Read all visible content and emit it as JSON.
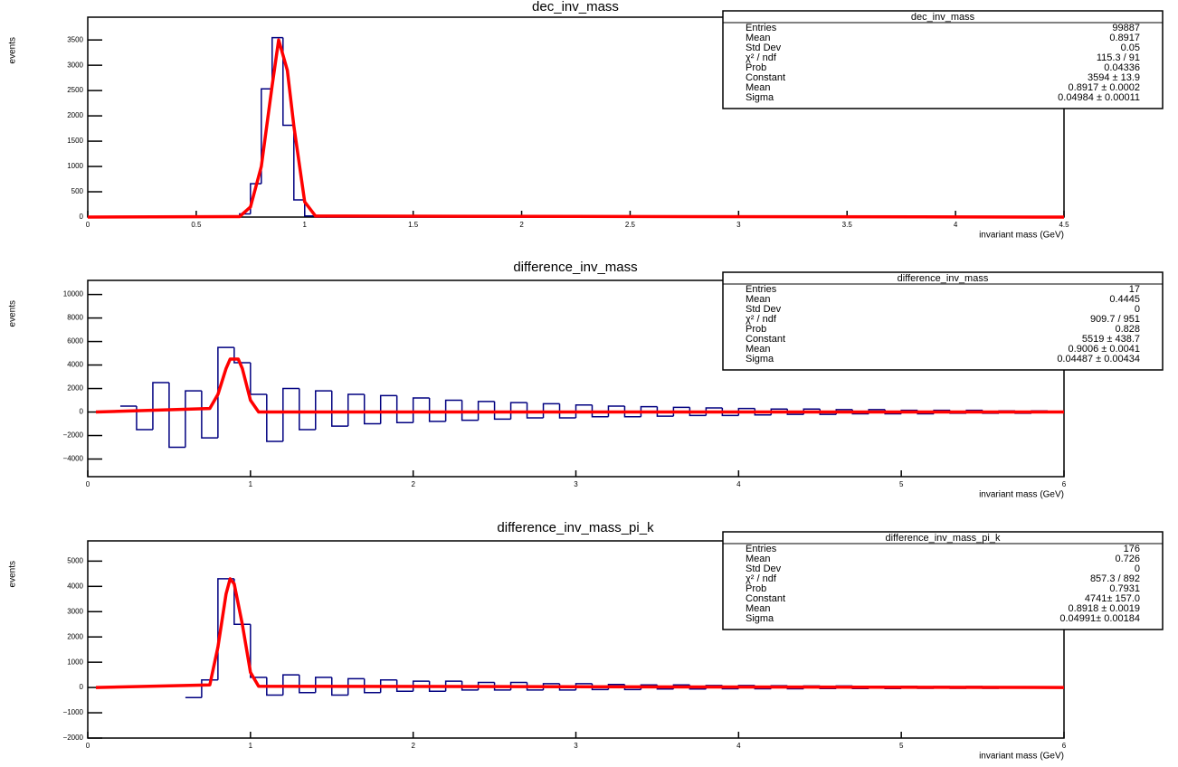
{
  "chart_data": [
    {
      "type": "histogram",
      "title": "dec_inv_mass",
      "x_label": "invariant mass (GeV)",
      "y_label": "events",
      "xlim": [
        0,
        4.5
      ],
      "xticks": [
        0,
        0.5,
        1,
        1.5,
        2,
        2.5,
        3,
        3.5,
        4,
        4.5
      ],
      "ylim": [
        0,
        3950
      ],
      "yticks": [
        0,
        500,
        1000,
        1500,
        2000,
        2500,
        3000,
        3500
      ],
      "color": "#000080",
      "bins": [
        0,
        0.5,
        0.55,
        0.6,
        0.65,
        0.7,
        0.75,
        0.8,
        0.85,
        0.9,
        0.95,
        1,
        1.05,
        1.1,
        1.15,
        1.2,
        4.5
      ],
      "values": [
        0,
        0,
        0,
        0,
        2,
        63,
        660,
        2533,
        3545,
        1814,
        339,
        23,
        1,
        0,
        0,
        0
      ],
      "fit": {
        "color": "#ff0000",
        "x": [
          0,
          0.7,
          0.75,
          0.8,
          0.85,
          0.88,
          0.92,
          0.95,
          1.0,
          1.05,
          4.5
        ],
        "values": [
          0,
          10,
          200,
          1000,
          2600,
          3500,
          2900,
          1800,
          300,
          20,
          0
        ]
      },
      "stats": {
        "title": "dec_inv_mass",
        "rows": [
          {
            "label": "Entries",
            "value": "99887"
          },
          {
            "label": "Mean",
            "value": "0.8917"
          },
          {
            "label": "Std Dev",
            "value": "0.05"
          },
          {
            "label": "χ² / ndf",
            "value": "115.3 / 91"
          },
          {
            "label": "Prob",
            "value": "0.04336"
          },
          {
            "label": "Constant",
            "value": "3594 ± 13.9"
          },
          {
            "label": "Mean",
            "value": "0.8917 ± 0.0002"
          },
          {
            "label": "Sigma",
            "value": "0.04984 ± 0.00011"
          }
        ]
      }
    },
    {
      "type": "histogram",
      "title": "difference_inv_mass",
      "x_label": "invariant mass (GeV)",
      "y_label": "events",
      "xlim": [
        0,
        6
      ],
      "xticks": [
        0,
        1,
        2,
        3,
        4,
        5,
        6
      ],
      "ylim": [
        -5500,
        11200
      ],
      "yticks": [
        {
          "value": -4000,
          "label": "−4000"
        },
        {
          "value": -2000,
          "label": "−2000"
        },
        0,
        2000,
        4000,
        6000,
        8000,
        10000
      ],
      "color": "#000080",
      "bins": [
        0.2,
        0.3,
        0.4,
        0.5,
        0.6,
        0.7,
        0.8,
        0.9,
        1,
        1.1,
        1.2,
        1.3,
        1.4,
        1.5,
        1.6,
        1.7,
        1.8,
        1.9,
        2,
        2.1,
        2.2,
        2.3,
        2.4,
        2.5,
        2.6,
        2.7,
        2.8,
        2.9,
        3,
        3.1,
        3.2,
        3.3,
        3.4,
        3.5,
        3.6,
        3.7,
        3.8,
        3.9,
        4,
        4.1,
        4.2,
        4.3,
        4.4,
        4.5,
        4.6,
        4.7,
        4.8,
        4.9,
        5,
        5.1,
        5.2,
        5.3,
        5.4,
        5.5,
        5.6,
        5.7,
        5.8,
        5.9,
        6
      ],
      "values": [
        500,
        -1500,
        2500,
        -3000,
        1800,
        -2200,
        5500,
        4200,
        1500,
        -2500,
        2000,
        -1500,
        1800,
        -1200,
        1500,
        -1000,
        1400,
        -900,
        1200,
        -800,
        1000,
        -700,
        900,
        -600,
        800,
        -500,
        700,
        -500,
        600,
        -400,
        500,
        -400,
        450,
        -350,
        400,
        -300,
        350,
        -300,
        300,
        -250,
        250,
        -200,
        250,
        -200,
        200,
        -150,
        200,
        -150,
        150,
        -150,
        150,
        -100,
        150,
        -100,
        100,
        -100,
        100,
        -50
      ],
      "fit": {
        "color": "#ff0000",
        "x": [
          0.05,
          0.75,
          0.8,
          0.85,
          0.875,
          0.925,
          0.95,
          1.0,
          1.05,
          6
        ],
        "values": [
          0,
          300,
          1500,
          3700,
          4500,
          4500,
          3700,
          1000,
          0,
          0
        ]
      },
      "stats": {
        "title": "difference_inv_mass",
        "rows": [
          {
            "label": "Entries",
            "value": "17"
          },
          {
            "label": "Mean",
            "value": "0.4445"
          },
          {
            "label": "Std Dev",
            "value": "0"
          },
          {
            "label": "χ² / ndf",
            "value": "909.7 / 951"
          },
          {
            "label": "Prob",
            "value": "0.828"
          },
          {
            "label": "Constant",
            "value": "5519 ± 438.7"
          },
          {
            "label": "Mean",
            "value": "0.9006 ± 0.0041"
          },
          {
            "label": "Sigma",
            "value": "0.04487 ± 0.00434"
          }
        ]
      }
    },
    {
      "type": "histogram",
      "title": "difference_inv_mass_pi_k",
      "x_label": "invariant mass (GeV)",
      "y_label": "events",
      "xlim": [
        0,
        6
      ],
      "xticks": [
        0,
        1,
        2,
        3,
        4,
        5,
        6
      ],
      "ylim": [
        -2000,
        5800
      ],
      "yticks": [
        {
          "value": -2000,
          "label": "−2000"
        },
        {
          "value": -1000,
          "label": "−1000"
        },
        0,
        1000,
        2000,
        3000,
        4000,
        5000
      ],
      "color": "#000080",
      "bins": [
        0.6,
        0.7,
        0.8,
        0.9,
        1,
        1.1,
        1.2,
        1.3,
        1.4,
        1.5,
        1.6,
        1.7,
        1.8,
        1.9,
        2,
        2.1,
        2.2,
        2.3,
        2.4,
        2.5,
        2.6,
        2.7,
        2.8,
        2.9,
        3,
        3.1,
        3.2,
        3.3,
        3.4,
        3.5,
        3.6,
        3.7,
        3.8,
        3.9,
        4,
        4.1,
        4.2,
        4.3,
        4.4,
        4.5,
        4.6,
        4.7,
        4.8,
        4.9,
        5,
        5.1,
        5.2,
        5.3,
        5.4,
        5.5,
        5.6,
        5.7,
        5.8,
        5.9,
        6
      ],
      "values": [
        -400,
        300,
        4300,
        2500,
        400,
        -300,
        500,
        -200,
        400,
        -300,
        350,
        -200,
        300,
        -150,
        250,
        -150,
        250,
        -100,
        200,
        -100,
        200,
        -100,
        150,
        -100,
        150,
        -80,
        120,
        -80,
        100,
        -60,
        100,
        -60,
        80,
        -50,
        80,
        -50,
        70,
        -50,
        60,
        -40,
        60,
        -40,
        50,
        -40,
        50,
        -30,
        40,
        -30,
        40,
        -30,
        30,
        -20,
        30,
        -20
      ],
      "fit": {
        "color": "#ff0000",
        "x": [
          0.05,
          0.75,
          0.8,
          0.85,
          0.875,
          0.9,
          0.95,
          1.0,
          1.05,
          6
        ],
        "values": [
          0,
          100,
          1600,
          3700,
          4300,
          4100,
          2500,
          600,
          50,
          0
        ]
      },
      "stats": {
        "title": "difference_inv_mass_pi_k",
        "rows": [
          {
            "label": "Entries",
            "value": "176"
          },
          {
            "label": "Mean",
            "value": "0.726"
          },
          {
            "label": "Std Dev",
            "value": "0"
          },
          {
            "label": "χ² / ndf",
            "value": "857.3 / 892"
          },
          {
            "label": "Prob",
            "value": "0.7931"
          },
          {
            "label": "Constant",
            "value": "4741± 157.0"
          },
          {
            "label": "Mean",
            "value": "0.8918 ± 0.0019"
          },
          {
            "label": "Sigma",
            "value": "0.04991± 0.00184"
          }
        ]
      }
    }
  ]
}
